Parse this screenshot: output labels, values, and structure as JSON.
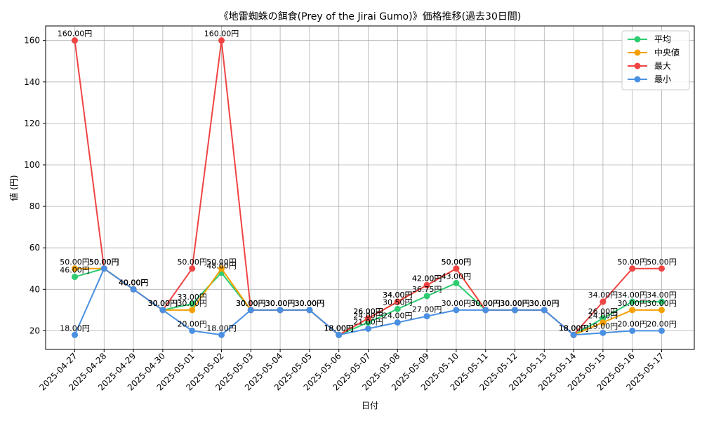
{
  "chart_data": {
    "type": "line",
    "title": "《地雷蜘蛛の餌食(Prey of the Jirai Gumo)》価格推移(過去30日間)",
    "xlabel": "日付",
    "ylabel": "値 (円)",
    "ylim": [
      11,
      167
    ],
    "yticks": [
      20,
      40,
      60,
      80,
      100,
      120,
      140,
      160
    ],
    "grid": true,
    "legend_position": "top-right",
    "label_suffix": "円",
    "categories": [
      "2025-04-27",
      "2025-04-28",
      "2025-04-29",
      "2025-04-30",
      "2025-05-01",
      "2025-05-02",
      "2025-05-03",
      "2025-05-04",
      "2025-05-05",
      "2025-05-06",
      "2025-05-07",
      "2025-05-08",
      "2025-05-09",
      "2025-05-10",
      "2025-05-11",
      "2025-05-12",
      "2025-05-13",
      "2025-05-14",
      "2025-05-15",
      "2025-05-16",
      "2025-05-17"
    ],
    "series": [
      {
        "name": "平均",
        "color": "#2ecc71",
        "values": [
          46.0,
          50.0,
          40.0,
          30.0,
          33.0,
          48.0,
          30.0,
          30.0,
          30.0,
          18.0,
          24.0,
          30.5,
          36.75,
          43.0,
          30.0,
          30.0,
          30.0,
          18.0,
          26.0,
          34.0,
          34.0
        ]
      },
      {
        "name": "中央値",
        "color": "#f5a000",
        "values": [
          50.0,
          50.0,
          40.0,
          30.0,
          30.0,
          50.0,
          30.0,
          30.0,
          30.0,
          18.0,
          26.0,
          34.0,
          42.0,
          50.0,
          30.0,
          30.0,
          30.0,
          18.0,
          24.0,
          30.0,
          30.0
        ]
      },
      {
        "name": "最大",
        "color": "#ef4444",
        "values": [
          160.0,
          50.0,
          40.0,
          30.0,
          50.0,
          160.0,
          30.0,
          30.0,
          30.0,
          18.0,
          26.0,
          34.0,
          42.0,
          50.0,
          30.0,
          30.0,
          30.0,
          18.0,
          34.0,
          50.0,
          50.0
        ]
      },
      {
        "name": "最小",
        "color": "#4a90e2",
        "values": [
          18.0,
          50.0,
          40.0,
          30.0,
          20.0,
          18.0,
          30.0,
          30.0,
          30.0,
          18.0,
          21.0,
          24.0,
          27.0,
          30.0,
          30.0,
          30.0,
          30.0,
          18.0,
          19.0,
          20.0,
          20.0
        ]
      }
    ]
  }
}
